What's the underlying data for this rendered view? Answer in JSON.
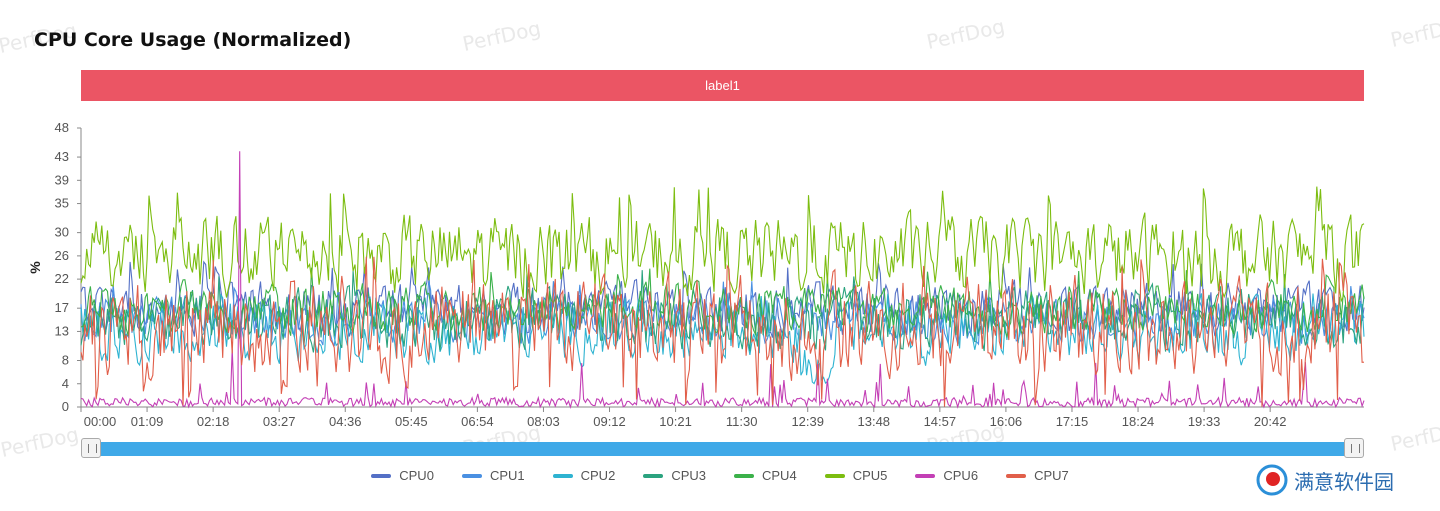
{
  "watermark": "PerfDog",
  "title": "CPU Core Usage (Normalized)",
  "label_bar": "label1",
  "logo_text": "满意软件园",
  "colors": {
    "label_bar": "#eb5564",
    "slider": "#3fa9e8"
  },
  "chart_data": {
    "type": "line",
    "ylabel": "%",
    "ylim": [
      0,
      48
    ],
    "y_ticks": [
      0,
      4,
      8,
      13,
      17,
      22,
      26,
      30,
      35,
      39,
      43,
      48
    ],
    "x_tick_labels": [
      "00:00",
      "01:09",
      "02:18",
      "03:27",
      "04:36",
      "05:45",
      "06:54",
      "08:03",
      "09:12",
      "10:21",
      "11:30",
      "12:39",
      "13:48",
      "14:57",
      "16:06",
      "17:15",
      "18:24",
      "19:33",
      "20:42"
    ],
    "x_range_seconds": [
      0,
      1340
    ],
    "legend_position": "bottom",
    "series": [
      {
        "name": "CPU0",
        "color": "#5470c6",
        "typical": 17,
        "range": [
          11,
          25
        ]
      },
      {
        "name": "CPU1",
        "color": "#4a90e2",
        "typical": 15,
        "range": [
          10,
          22
        ]
      },
      {
        "name": "CPU2",
        "color": "#2eb3d1",
        "typical": 13,
        "range": [
          4,
          20
        ]
      },
      {
        "name": "CPU3",
        "color": "#2ba37f",
        "typical": 15,
        "range": [
          8,
          24
        ]
      },
      {
        "name": "CPU4",
        "color": "#3bb14a",
        "typical": 17,
        "range": [
          11,
          24
        ]
      },
      {
        "name": "CPU5",
        "color": "#7cbd10",
        "typical": 26,
        "range": [
          17,
          38
        ]
      },
      {
        "name": "CPU6",
        "color": "#c33fb5",
        "typical": 1,
        "range": [
          0,
          44
        ]
      },
      {
        "name": "CPU7",
        "color": "#e15f4a",
        "typical": 14,
        "range": [
          0,
          26
        ]
      }
    ]
  }
}
